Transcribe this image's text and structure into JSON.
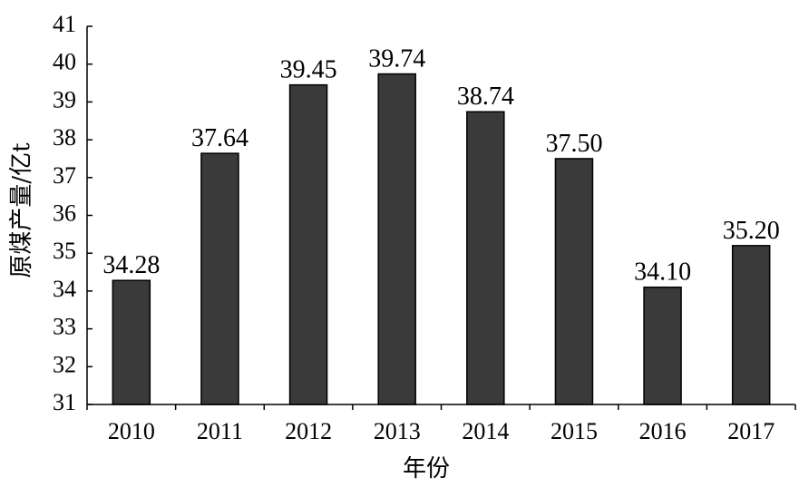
{
  "chart_data": {
    "type": "bar",
    "categories": [
      "2010",
      "2011",
      "2012",
      "2013",
      "2014",
      "2015",
      "2016",
      "2017"
    ],
    "values": [
      34.28,
      37.64,
      39.45,
      39.74,
      38.74,
      37.5,
      34.1,
      35.2
    ],
    "data_labels": [
      "34.28",
      "37.64",
      "39.45",
      "39.74",
      "38.74",
      "37.50",
      "34.10",
      "35.20"
    ],
    "title": "",
    "xlabel": "年份",
    "ylabel": "原煤产量/亿t",
    "ylim": [
      31,
      41
    ],
    "yticks": [
      31,
      32,
      33,
      34,
      35,
      36,
      37,
      38,
      39,
      40,
      41
    ],
    "grid": false,
    "bar_color": "#3a3a3a"
  }
}
